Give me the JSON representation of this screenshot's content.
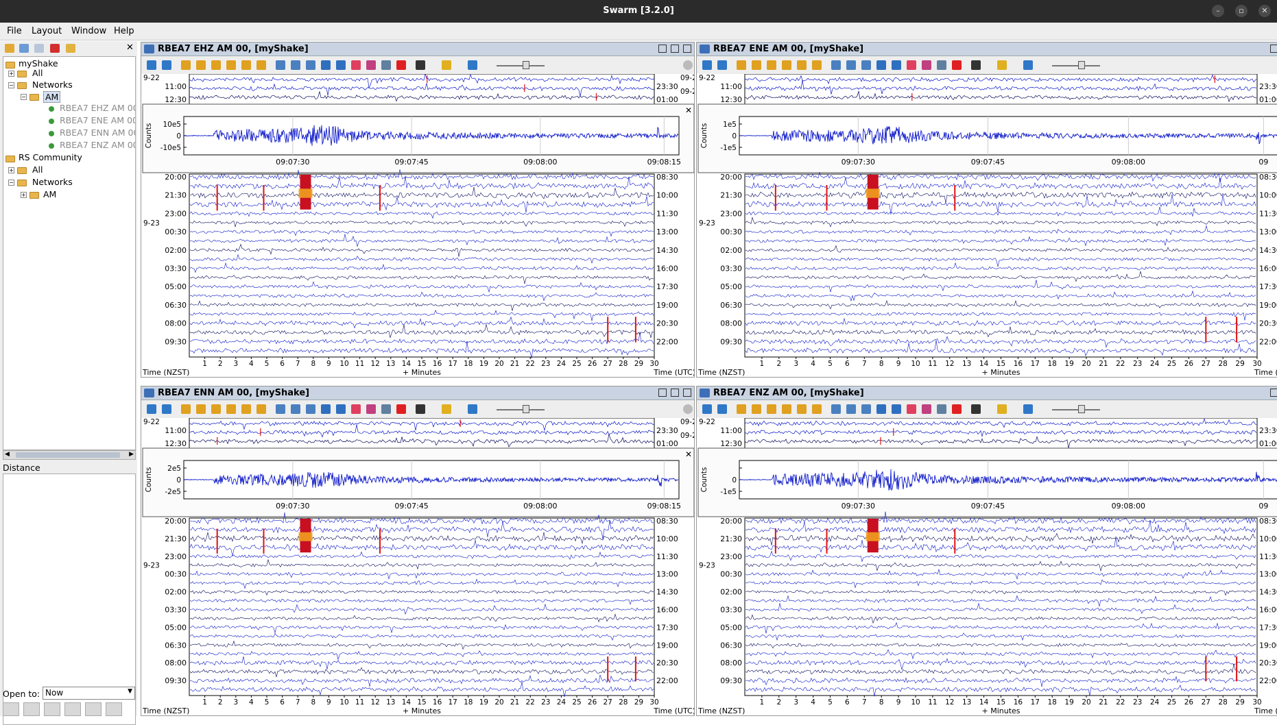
{
  "window": {
    "title": "Swarm [3.2.0]",
    "controls": [
      "–",
      "▫",
      "✕"
    ]
  },
  "menu": {
    "items": [
      "File",
      "Layout",
      "Window",
      "Help"
    ]
  },
  "tree": {
    "items": [
      {
        "label": "myShake",
        "dim": false
      },
      {
        "label": "All",
        "dim": false
      },
      {
        "label": "Networks",
        "dim": false
      },
      {
        "label": "AM",
        "dim": false
      },
      {
        "label": "RBEA7 EHZ AM 00",
        "dim": true
      },
      {
        "label": "RBEA7 ENE AM 00",
        "dim": true
      },
      {
        "label": "RBEA7 ENN AM 00",
        "dim": true
      },
      {
        "label": "RBEA7 ENZ AM 00",
        "dim": true
      },
      {
        "label": "RS Community",
        "dim": false
      },
      {
        "label": "All",
        "dim": false
      },
      {
        "label": "Networks",
        "dim": false
      },
      {
        "label": "AM",
        "dim": false
      }
    ]
  },
  "distance": {
    "label": "Distance"
  },
  "open_to": {
    "label": "Open to:",
    "value": "Now"
  },
  "helicorder": {
    "left_dates": [
      "9-22",
      "9-23"
    ],
    "top_times_left": [
      "11:00",
      "12:30"
    ],
    "top_times_right": [
      "23:30",
      "01:00"
    ],
    "top_dates_right": [
      "09-2",
      "09-2"
    ],
    "rows_left": [
      "20:00",
      "21:30",
      "23:00",
      "00:30",
      "02:00",
      "03:30",
      "05:00",
      "06:30",
      "08:00",
      "09:30"
    ],
    "rows_right": [
      "08:30",
      "10:00",
      "11:30",
      "13:00",
      "14:30",
      "16:00",
      "17:30",
      "19:00",
      "20:30",
      "22:00"
    ],
    "minutes": [
      "1",
      "2",
      "3",
      "4",
      "5",
      "6",
      "7",
      "8",
      "9",
      "10",
      "11",
      "12",
      "13",
      "14",
      "15",
      "16",
      "17",
      "18",
      "19",
      "20",
      "21",
      "22",
      "23",
      "24",
      "25",
      "26",
      "27",
      "28",
      "29",
      "30"
    ],
    "xlabel_left": "Time (NZST)",
    "xlabel_mid": "+ Minutes",
    "xlabel_right": "Time (UTC)",
    "xlabel_right_cut": "Time (",
    "zoom_ylabel": "Counts",
    "zoom_times": [
      "09:07:30",
      "09:07:45",
      "09:08:00",
      "09:08:15"
    ],
    "zoom_times_cut": [
      "09:07:30",
      "09:07:45",
      "09:08:00",
      "09"
    ],
    "close": "✕"
  },
  "panels": [
    {
      "title": "RBEA7 EHZ AM 00, [myShake]",
      "yticks": [
        "10e5",
        "0",
        "-10e5"
      ],
      "amp": 1.0,
      "seed": 3
    },
    {
      "title": "RBEA7 ENE AM 00, [myShake]",
      "yticks": [
        "1e5",
        "0",
        "-1e5"
      ],
      "amp": 0.9,
      "seed": 11
    },
    {
      "title": "RBEA7 ENN AM 00, [myShake]",
      "yticks": [
        "2e5",
        "0",
        "-2e5"
      ],
      "amp": 0.8,
      "seed": 23
    },
    {
      "title": "RBEA7 ENZ AM 00, [myShake]",
      "yticks": [
        "",
        "0",
        "-1e5"
      ],
      "amp": 1.0,
      "seed": 37
    }
  ],
  "colors": {
    "trace": "#0b17c8",
    "trace_dark": "#05085a",
    "accent_red": "#e01010",
    "title_bar": "#c9d3e2"
  }
}
